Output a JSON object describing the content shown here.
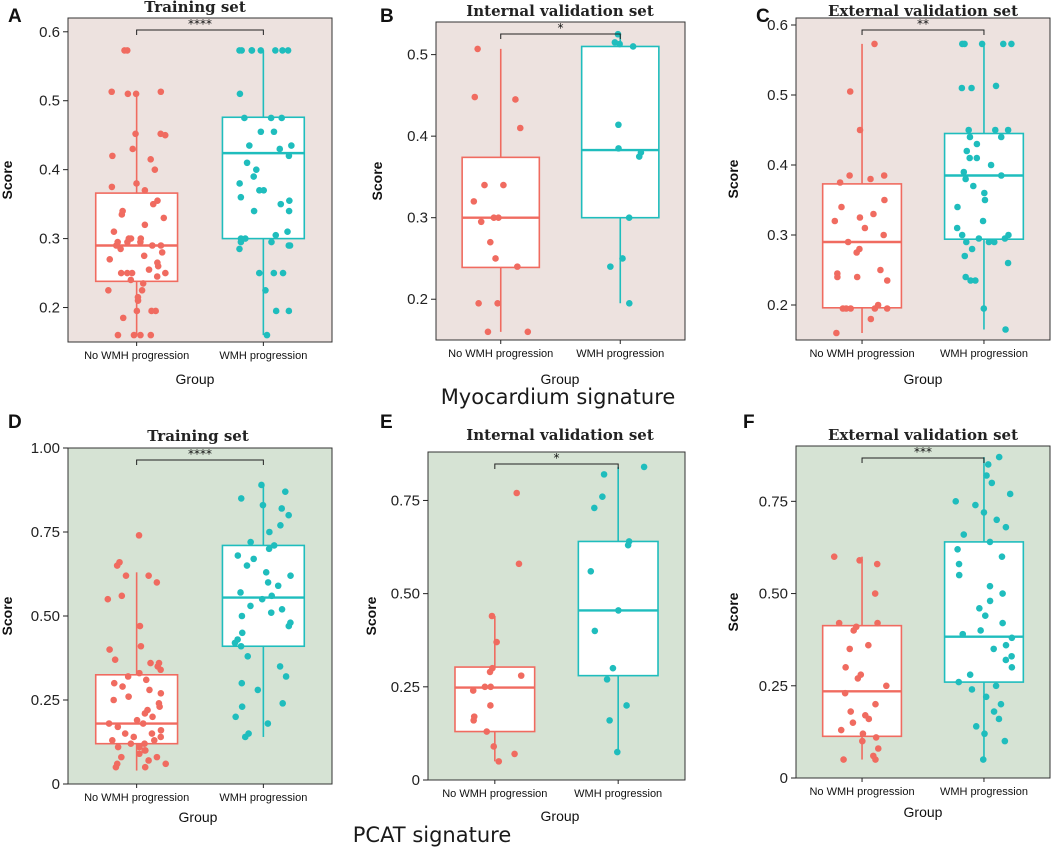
{
  "figure": {
    "signatures": [
      "Myocardium signature",
      "PCAT signature"
    ],
    "colors": {
      "no_progression": "#f06b60",
      "progression": "#1fbdbd",
      "panel_bg_top": "#ede2df",
      "panel_bg_bottom": "#d6e3d4",
      "axis": "#222222"
    },
    "group_axis_label": "Group",
    "score_axis_label": "Score"
  },
  "chart_data": [
    {
      "type": "box",
      "panel": "A",
      "title": "Training set",
      "xlabel": "Group",
      "ylabel": "Score",
      "ylim": [
        0.15,
        0.62
      ],
      "yticks": [
        0.2,
        0.3,
        0.4,
        0.5,
        0.6
      ],
      "ytick_labels": [
        "0.2",
        "0.3",
        "0.4",
        "0.5",
        "0.6"
      ],
      "categories": [
        "No WMH progression",
        "WMH progression"
      ],
      "significance": "****",
      "series": [
        {
          "name": "No WMH progression",
          "color": "#f06b60",
          "q1": 0.238,
          "median": 0.29,
          "q3": 0.366,
          "whisker_low": 0.16,
          "whisker_high": 0.513,
          "points": [
            0.16,
            0.16,
            0.16,
            0.16,
            0.185,
            0.195,
            0.195,
            0.195,
            0.21,
            0.215,
            0.225,
            0.225,
            0.235,
            0.24,
            0.245,
            0.25,
            0.25,
            0.25,
            0.25,
            0.255,
            0.26,
            0.265,
            0.27,
            0.275,
            0.28,
            0.285,
            0.29,
            0.29,
            0.29,
            0.295,
            0.295,
            0.295,
            0.3,
            0.3,
            0.3,
            0.31,
            0.32,
            0.33,
            0.335,
            0.34,
            0.35,
            0.355,
            0.37,
            0.375,
            0.38,
            0.4,
            0.415,
            0.42,
            0.43,
            0.45,
            0.452,
            0.452,
            0.51,
            0.51,
            0.513,
            0.513,
            0.573,
            0.573
          ]
        },
        {
          "name": "WMH progression",
          "color": "#1fbdbd",
          "q1": 0.3,
          "median": 0.424,
          "q3": 0.476,
          "whisker_low": 0.16,
          "whisker_high": 0.573,
          "points": [
            0.16,
            0.195,
            0.195,
            0.225,
            0.25,
            0.25,
            0.25,
            0.285,
            0.29,
            0.29,
            0.295,
            0.295,
            0.3,
            0.3,
            0.305,
            0.31,
            0.34,
            0.34,
            0.35,
            0.355,
            0.36,
            0.37,
            0.37,
            0.38,
            0.39,
            0.4,
            0.41,
            0.42,
            0.43,
            0.435,
            0.435,
            0.455,
            0.455,
            0.475,
            0.475,
            0.475,
            0.51,
            0.573,
            0.573,
            0.573,
            0.573,
            0.573,
            0.573,
            0.573,
            0.573
          ]
        }
      ]
    },
    {
      "type": "box",
      "panel": "B",
      "title": "Internal validation set",
      "xlabel": "Group",
      "ylabel": "Score",
      "ylim": [
        0.15,
        0.54
      ],
      "yticks": [
        0.2,
        0.3,
        0.4,
        0.5
      ],
      "ytick_labels": [
        "0.2",
        "0.3",
        "0.4",
        "0.5"
      ],
      "categories": [
        "No WMH progression",
        "WMH progression"
      ],
      "significance": "*",
      "series": [
        {
          "name": "No WMH progression",
          "color": "#f06b60",
          "q1": 0.239,
          "median": 0.3,
          "q3": 0.374,
          "whisker_low": 0.16,
          "whisker_high": 0.507,
          "points": [
            0.16,
            0.16,
            0.195,
            0.195,
            0.24,
            0.25,
            0.27,
            0.295,
            0.3,
            0.3,
            0.32,
            0.34,
            0.34,
            0.41,
            0.445,
            0.448,
            0.507
          ]
        },
        {
          "name": "WMH progression",
          "color": "#1fbdbd",
          "q1": 0.3,
          "median": 0.383,
          "q3": 0.51,
          "whisker_low": 0.195,
          "whisker_high": 0.525,
          "points": [
            0.195,
            0.24,
            0.25,
            0.3,
            0.375,
            0.38,
            0.385,
            0.414,
            0.51,
            0.513,
            0.515,
            0.525
          ]
        }
      ]
    },
    {
      "type": "box",
      "panel": "C",
      "title": "External validation set",
      "xlabel": "Group",
      "ylabel": "Score",
      "ylim": [
        0.15,
        0.61
      ],
      "yticks": [
        0.2,
        0.3,
        0.4,
        0.5,
        0.6
      ],
      "ytick_labels": [
        "0.2",
        "0.3",
        "0.4",
        "0.5",
        "0.6"
      ],
      "categories": [
        "No WMH progression",
        "WMH progression"
      ],
      "significance": "**",
      "series": [
        {
          "name": "No WMH progression",
          "color": "#f06b60",
          "q1": 0.196,
          "median": 0.29,
          "q3": 0.373,
          "whisker_low": 0.16,
          "whisker_high": 0.573,
          "points": [
            0.16,
            0.18,
            0.195,
            0.195,
            0.195,
            0.195,
            0.195,
            0.2,
            0.235,
            0.24,
            0.24,
            0.245,
            0.25,
            0.275,
            0.28,
            0.29,
            0.3,
            0.31,
            0.32,
            0.325,
            0.33,
            0.34,
            0.35,
            0.375,
            0.38,
            0.385,
            0.385,
            0.45,
            0.505,
            0.573
          ]
        },
        {
          "name": "WMH progression",
          "color": "#1fbdbd",
          "q1": 0.294,
          "median": 0.385,
          "q3": 0.445,
          "whisker_low": 0.165,
          "whisker_high": 0.573,
          "points": [
            0.165,
            0.195,
            0.235,
            0.235,
            0.24,
            0.26,
            0.27,
            0.28,
            0.29,
            0.29,
            0.29,
            0.295,
            0.295,
            0.3,
            0.3,
            0.31,
            0.32,
            0.34,
            0.35,
            0.36,
            0.37,
            0.38,
            0.385,
            0.39,
            0.4,
            0.41,
            0.41,
            0.42,
            0.43,
            0.44,
            0.44,
            0.45,
            0.45,
            0.45,
            0.51,
            0.51,
            0.513,
            0.573,
            0.573,
            0.573,
            0.573,
            0.573
          ]
        }
      ]
    },
    {
      "type": "box",
      "panel": "D",
      "title": "Training set",
      "xlabel": "Group",
      "ylabel": "Score",
      "ylim": [
        0,
        1.0
      ],
      "yticks": [
        0,
        0.25,
        0.5,
        0.75,
        1.0
      ],
      "ytick_labels": [
        "0",
        "0.25",
        "0.50",
        "0.75",
        "1.00"
      ],
      "categories": [
        "No WMH progression",
        "WMH progression"
      ],
      "significance": "****",
      "series": [
        {
          "name": "No WMH progression",
          "color": "#f06b60",
          "q1": 0.12,
          "median": 0.18,
          "q3": 0.325,
          "whisker_low": 0.04,
          "whisker_high": 0.63,
          "points": [
            0.05,
            0.05,
            0.06,
            0.06,
            0.07,
            0.08,
            0.08,
            0.09,
            0.1,
            0.1,
            0.11,
            0.11,
            0.12,
            0.12,
            0.13,
            0.13,
            0.14,
            0.14,
            0.15,
            0.15,
            0.16,
            0.17,
            0.18,
            0.18,
            0.19,
            0.2,
            0.21,
            0.22,
            0.23,
            0.24,
            0.25,
            0.26,
            0.27,
            0.28,
            0.29,
            0.3,
            0.31,
            0.32,
            0.33,
            0.34,
            0.35,
            0.36,
            0.36,
            0.37,
            0.4,
            0.41,
            0.47,
            0.55,
            0.56,
            0.6,
            0.62,
            0.62,
            0.65,
            0.66,
            0.74
          ]
        },
        {
          "name": "WMH progression",
          "color": "#1fbdbd",
          "q1": 0.41,
          "median": 0.555,
          "q3": 0.71,
          "whisker_low": 0.14,
          "whisker_high": 0.89,
          "points": [
            0.14,
            0.15,
            0.18,
            0.2,
            0.23,
            0.24,
            0.28,
            0.3,
            0.32,
            0.35,
            0.38,
            0.41,
            0.42,
            0.43,
            0.45,
            0.47,
            0.48,
            0.5,
            0.51,
            0.52,
            0.53,
            0.55,
            0.56,
            0.57,
            0.59,
            0.6,
            0.62,
            0.63,
            0.65,
            0.67,
            0.68,
            0.7,
            0.71,
            0.72,
            0.75,
            0.77,
            0.8,
            0.82,
            0.83,
            0.85,
            0.87,
            0.89
          ]
        }
      ]
    },
    {
      "type": "box",
      "panel": "E",
      "title": "Internal validation set",
      "xlabel": "Group",
      "ylabel": "Score",
      "ylim": [
        0,
        0.88
      ],
      "yticks": [
        0,
        0.25,
        0.5,
        0.75
      ],
      "ytick_labels": [
        "0",
        "0.25",
        "0.50",
        "0.75"
      ],
      "categories": [
        "No WMH progression",
        "WMH progression"
      ],
      "significance": "*",
      "series": [
        {
          "name": "No WMH progression",
          "color": "#f06b60",
          "q1": 0.13,
          "median": 0.248,
          "q3": 0.303,
          "whisker_low": 0.05,
          "whisker_high": 0.44,
          "points": [
            0.05,
            0.07,
            0.09,
            0.13,
            0.16,
            0.17,
            0.2,
            0.24,
            0.25,
            0.25,
            0.28,
            0.29,
            0.3,
            0.37,
            0.44,
            0.58,
            0.77
          ]
        },
        {
          "name": "WMH progression",
          "color": "#1fbdbd",
          "q1": 0.28,
          "median": 0.455,
          "q3": 0.64,
          "whisker_low": 0.075,
          "whisker_high": 0.84,
          "points": [
            0.075,
            0.16,
            0.2,
            0.27,
            0.3,
            0.4,
            0.455,
            0.56,
            0.63,
            0.64,
            0.73,
            0.76,
            0.82,
            0.84
          ]
        }
      ]
    },
    {
      "type": "box",
      "panel": "F",
      "title": "External validation set",
      "xlabel": "Group",
      "ylabel": "Score",
      "ylim": [
        0,
        0.9
      ],
      "yticks": [
        0,
        0.25,
        0.5,
        0.75
      ],
      "ytick_labels": [
        "0",
        "0.25",
        "0.50",
        "0.75"
      ],
      "categories": [
        "No WMH progression",
        "WMH progression"
      ],
      "significance": "***",
      "series": [
        {
          "name": "No WMH progression",
          "color": "#f06b60",
          "q1": 0.113,
          "median": 0.235,
          "q3": 0.413,
          "whisker_low": 0.05,
          "whisker_high": 0.6,
          "points": [
            0.05,
            0.05,
            0.06,
            0.08,
            0.1,
            0.11,
            0.12,
            0.13,
            0.15,
            0.16,
            0.17,
            0.18,
            0.2,
            0.23,
            0.25,
            0.27,
            0.28,
            0.3,
            0.35,
            0.36,
            0.4,
            0.41,
            0.42,
            0.42,
            0.5,
            0.58,
            0.59,
            0.6
          ]
        },
        {
          "name": "WMH progression",
          "color": "#1fbdbd",
          "q1": 0.26,
          "median": 0.383,
          "q3": 0.64,
          "whisker_low": 0.05,
          "whisker_high": 0.87,
          "points": [
            0.05,
            0.1,
            0.12,
            0.14,
            0.16,
            0.18,
            0.2,
            0.22,
            0.24,
            0.25,
            0.26,
            0.28,
            0.3,
            0.32,
            0.33,
            0.35,
            0.36,
            0.38,
            0.39,
            0.4,
            0.42,
            0.44,
            0.46,
            0.48,
            0.5,
            0.52,
            0.55,
            0.58,
            0.6,
            0.62,
            0.64,
            0.66,
            0.68,
            0.7,
            0.72,
            0.74,
            0.75,
            0.77,
            0.8,
            0.82,
            0.85,
            0.87
          ]
        }
      ]
    }
  ]
}
